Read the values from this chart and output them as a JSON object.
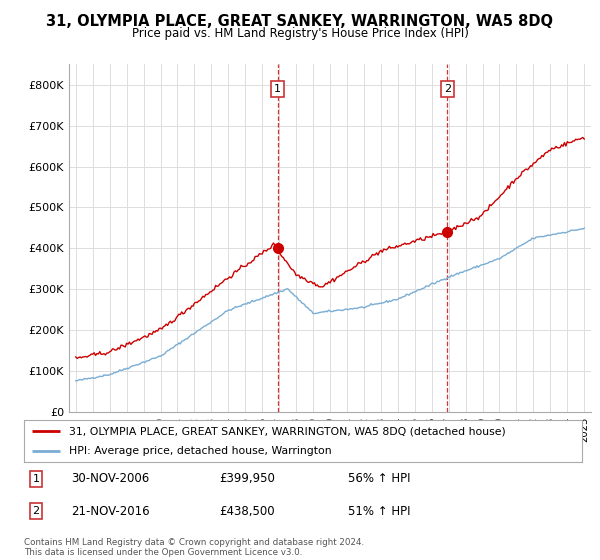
{
  "title": "31, OLYMPIA PLACE, GREAT SANKEY, WARRINGTON, WA5 8DQ",
  "subtitle": "Price paid vs. HM Land Registry's House Price Index (HPI)",
  "ylim": [
    0,
    850000
  ],
  "yticks": [
    0,
    100000,
    200000,
    300000,
    400000,
    500000,
    600000,
    700000,
    800000
  ],
  "ytick_labels": [
    "£0",
    "£100K",
    "£200K",
    "£300K",
    "£400K",
    "£500K",
    "£600K",
    "£700K",
    "£800K"
  ],
  "red_color": "#cc0000",
  "blue_color": "#7aadd4",
  "vline_color": "#cc0000",
  "legend_red": "31, OLYMPIA PLACE, GREAT SANKEY, WARRINGTON, WA5 8DQ (detached house)",
  "legend_blue": "HPI: Average price, detached house, Warrington",
  "footnote": "Contains HM Land Registry data © Crown copyright and database right 2024.\nThis data is licensed under the Open Government Licence v3.0.",
  "bg_color": "#ffffff",
  "grid_color": "#dddddd",
  "sale1_year": 2006.9,
  "sale1_price": 399950,
  "sale2_year": 2016.9,
  "sale2_price": 438500,
  "xmin": 1995,
  "xmax": 2025
}
